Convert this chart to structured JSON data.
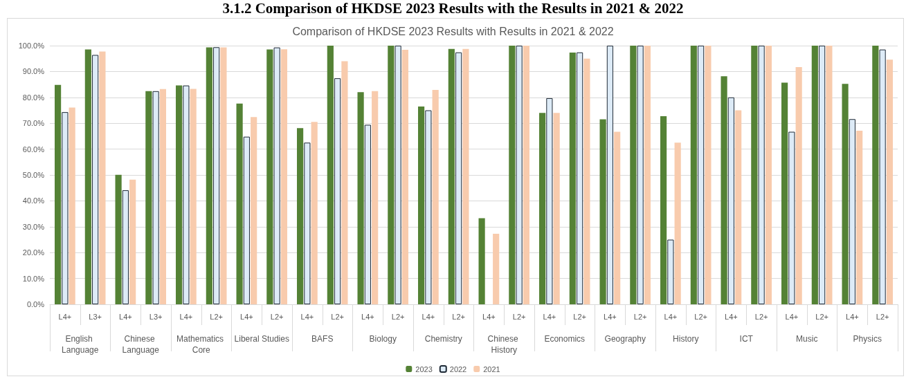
{
  "chart_data": {
    "type": "bar",
    "title": "Comparison of HKDSE 2023 Results with Results in 2021 & 2022",
    "annotations": [
      "3.1.2 Comparison of HKDSE 2023 Results with the Results in 2021 & 2022",
      "English Language",
      "Chinese Language",
      "Mathematics Core",
      "Liberal Studies",
      "BAFS",
      "Biology",
      "Chemistry",
      "Chinese History",
      "Economics",
      "Geography",
      "History",
      "ICT",
      "Music",
      "Physics"
    ],
    "categories": [
      "L4+",
      "L3+",
      "L4+",
      "L3+",
      "L4+",
      "L2+",
      "L4+",
      "L2+",
      "L4+",
      "L2+",
      "L4+",
      "L2+",
      "L4+",
      "L2+",
      "L4+",
      "L2+",
      "L4+",
      "L2+",
      "L4+",
      "L2+",
      "L4+",
      "L2+",
      "L4+",
      "L2+",
      "L4+",
      "L2+",
      "L4+",
      "L2+"
    ],
    "series": [
      {
        "name": "2023",
        "color": "#548235",
        "values": [
          84.8,
          98.5,
          50.1,
          82.4,
          84.6,
          99.3,
          77.6,
          98.5,
          68.1,
          100,
          82.0,
          100,
          76.5,
          98.7,
          33.3,
          100,
          74.0,
          97.3,
          71.5,
          100,
          72.7,
          100,
          88.2,
          100,
          85.7,
          100,
          85.2,
          100
        ]
      },
      {
        "name": "2022",
        "color": "#ddebf7",
        "values": [
          74.3,
          96.4,
          44.1,
          82.4,
          84.6,
          99.4,
          64.8,
          99.3,
          62.5,
          87.4,
          69.4,
          100,
          75.0,
          97.4,
          null,
          100,
          79.7,
          97.4,
          100,
          100,
          25.0,
          100,
          80.0,
          100,
          66.7,
          100,
          71.6,
          98.5
        ]
      },
      {
        "name": "2021",
        "color": "#f8cbad",
        "values": [
          76.1,
          97.7,
          48.2,
          83.2,
          83.3,
          99.3,
          72.4,
          98.6,
          70.5,
          94.0,
          82.4,
          98.4,
          82.9,
          98.7,
          27.3,
          100,
          74.0,
          95.0,
          66.7,
          100,
          62.5,
          100,
          75.0,
          100,
          91.7,
          100,
          67.1,
          94.6
        ]
      }
    ],
    "ylim": [
      0,
      100
    ],
    "yticks": [
      {
        "value": 0,
        "label": "0.0%"
      },
      {
        "value": 10,
        "label": "10.0%"
      },
      {
        "value": 20,
        "label": "20.0%"
      },
      {
        "value": 30,
        "label": "30.0%"
      },
      {
        "value": 40,
        "label": "40.0%"
      },
      {
        "value": 50,
        "label": "50.0%"
      },
      {
        "value": 60,
        "label": "60.0%"
      },
      {
        "value": 70,
        "label": "70.0%"
      },
      {
        "value": 80,
        "label": "80.0%"
      },
      {
        "value": 90,
        "label": "90.0%"
      },
      {
        "value": 100,
        "label": "100.0%"
      }
    ],
    "grid": "y",
    "legend": "bottom"
  }
}
